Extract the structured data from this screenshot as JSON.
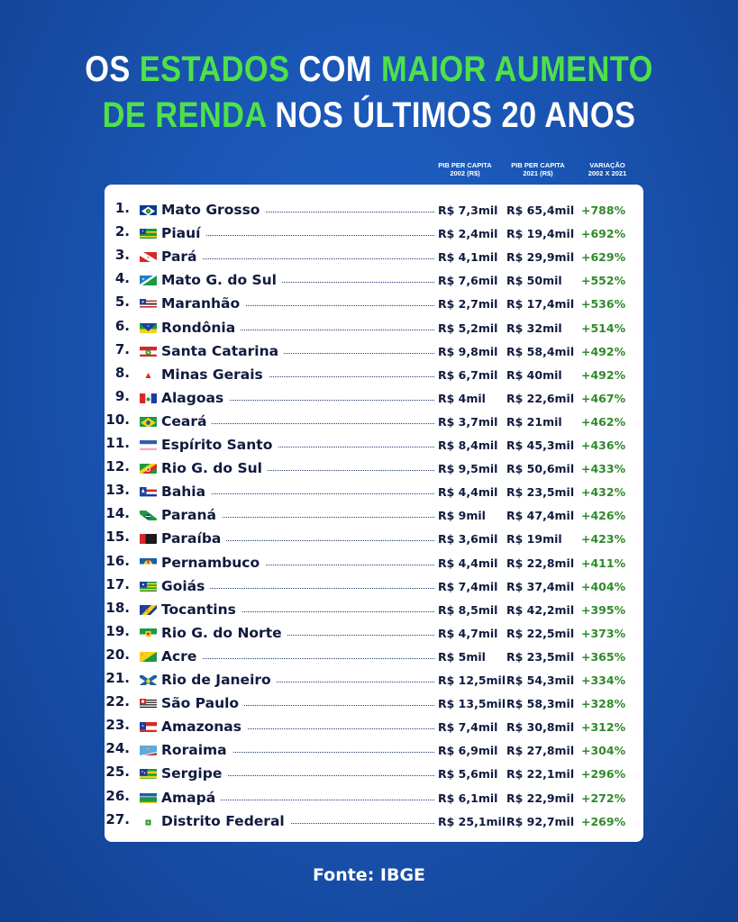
{
  "title": {
    "line1": [
      {
        "text": "OS ",
        "highlight": false
      },
      {
        "text": "ESTADOS",
        "highlight": true
      },
      {
        "text": " COM ",
        "highlight": false
      },
      {
        "text": "MAIOR AUMENTO",
        "highlight": true
      }
    ],
    "line2": [
      {
        "text": "DE RENDA",
        "highlight": true
      },
      {
        "text": " NOS ÚLTIMOS 20 ANOS",
        "highlight": false
      }
    ]
  },
  "colors": {
    "background": "#1a55b4",
    "highlight": "#4fe04a",
    "text_dark": "#101a3e",
    "variation": "#2f8a2a"
  },
  "columns": {
    "pib2002": {
      "line1": "PIB PER CAPITA",
      "line2": "2002 (R$)"
    },
    "pib2021": {
      "line1": "PIB PER CAPITA",
      "line2": "2021 (R$)"
    },
    "variation": {
      "line1": "VARIAÇÃO",
      "line2": "2002 X 2021"
    }
  },
  "rows": [
    {
      "rank": "1.",
      "state": "Mato Grosso",
      "flag": "mato-grosso-flag",
      "pib2002": "R$ 7,3mil",
      "pib2021": "R$ 65,4mil",
      "variation": "+788%"
    },
    {
      "rank": "2.",
      "state": "Piauí",
      "flag": "piaui-flag",
      "pib2002": "R$ 2,4mil",
      "pib2021": "R$ 19,4mil",
      "variation": "+692%"
    },
    {
      "rank": "3.",
      "state": "Pará",
      "flag": "para-flag",
      "pib2002": "R$ 4,1mil",
      "pib2021": "R$ 29,9mil",
      "variation": "+629%"
    },
    {
      "rank": "4.",
      "state": "Mato G. do Sul",
      "flag": "mato-grosso-do-sul-flag",
      "pib2002": "R$ 7,6mil",
      "pib2021": "R$ 50mil",
      "variation": "+552%"
    },
    {
      "rank": "5.",
      "state": "Maranhão",
      "flag": "maranhao-flag",
      "pib2002": "R$ 2,7mil",
      "pib2021": "R$ 17,4mil",
      "variation": "+536%"
    },
    {
      "rank": "6.",
      "state": "Rondônia",
      "flag": "rondonia-flag",
      "pib2002": "R$ 5,2mil",
      "pib2021": "R$ 32mil",
      "variation": "+514%"
    },
    {
      "rank": "7.",
      "state": "Santa Catarina",
      "flag": "santa-catarina-flag",
      "pib2002": "R$ 9,8mil",
      "pib2021": "R$ 58,4mil",
      "variation": "+492%"
    },
    {
      "rank": "8.",
      "state": "Minas Gerais",
      "flag": "minas-gerais-flag",
      "pib2002": "R$ 6,7mil",
      "pib2021": "R$ 40mil",
      "variation": "+492%"
    },
    {
      "rank": "9.",
      "state": "Alagoas",
      "flag": "alagoas-flag",
      "pib2002": "R$ 4mil",
      "pib2021": "R$ 22,6mil",
      "variation": "+467%"
    },
    {
      "rank": "10.",
      "state": "Ceará",
      "flag": "ceara-flag",
      "pib2002": "R$ 3,7mil",
      "pib2021": "R$ 21mil",
      "variation": "+462%"
    },
    {
      "rank": "11.",
      "state": "Espírito Santo",
      "flag": "espirito-santo-flag",
      "pib2002": "R$ 8,4mil",
      "pib2021": "R$ 45,3mil",
      "variation": "+436%"
    },
    {
      "rank": "12.",
      "state": "Rio G. do Sul",
      "flag": "rio-grande-do-sul-flag",
      "pib2002": "R$ 9,5mil",
      "pib2021": "R$ 50,6mil",
      "variation": "+433%"
    },
    {
      "rank": "13.",
      "state": "Bahia",
      "flag": "bahia-flag",
      "pib2002": "R$ 4,4mil",
      "pib2021": "R$ 23,5mil",
      "variation": "+432%"
    },
    {
      "rank": "14.",
      "state": "Paraná",
      "flag": "parana-flag",
      "pib2002": "R$ 9mil",
      "pib2021": "R$ 47,4mil",
      "variation": "+426%"
    },
    {
      "rank": "15.",
      "state": "Paraíba",
      "flag": "paraiba-flag",
      "pib2002": "R$ 3,6mil",
      "pib2021": "R$ 19mil",
      "variation": "+423%"
    },
    {
      "rank": "16.",
      "state": "Pernambuco",
      "flag": "pernambuco-flag",
      "pib2002": "R$ 4,4mil",
      "pib2021": "R$ 22,8mil",
      "variation": "+411%"
    },
    {
      "rank": "17.",
      "state": "Goiás",
      "flag": "goias-flag",
      "pib2002": "R$ 7,4mil",
      "pib2021": "R$ 37,4mil",
      "variation": "+404%"
    },
    {
      "rank": "18.",
      "state": "Tocantins",
      "flag": "tocantins-flag",
      "pib2002": "R$ 8,5mil",
      "pib2021": "R$ 42,2mil",
      "variation": "+395%"
    },
    {
      "rank": "19.",
      "state": "Rio G. do Norte",
      "flag": "rio-grande-do-norte-flag",
      "pib2002": "R$ 4,7mil",
      "pib2021": "R$ 22,5mil",
      "variation": "+373%"
    },
    {
      "rank": "20.",
      "state": "Acre",
      "flag": "acre-flag",
      "pib2002": "R$ 5mil",
      "pib2021": "R$ 23,5mil",
      "variation": "+365%"
    },
    {
      "rank": "21.",
      "state": "Rio de Janeiro",
      "flag": "rio-de-janeiro-flag",
      "pib2002": "R$ 12,5mil",
      "pib2021": "R$ 54,3mil",
      "variation": "+334%"
    },
    {
      "rank": "22.",
      "state": "São Paulo",
      "flag": "sao-paulo-flag",
      "pib2002": "R$ 13,5mil",
      "pib2021": "R$ 58,3mil",
      "variation": "+328%"
    },
    {
      "rank": "23.",
      "state": "Amazonas",
      "flag": "amazonas-flag",
      "pib2002": "R$ 7,4mil",
      "pib2021": "R$ 30,8mil",
      "variation": "+312%"
    },
    {
      "rank": "24.",
      "state": "Roraima",
      "flag": "roraima-flag",
      "pib2002": "R$ 6,9mil",
      "pib2021": "R$ 27,8mil",
      "variation": "+304%"
    },
    {
      "rank": "25.",
      "state": "Sergipe",
      "flag": "sergipe-flag",
      "pib2002": "R$ 5,6mil",
      "pib2021": "R$ 22,1mil",
      "variation": "+296%"
    },
    {
      "rank": "26.",
      "state": "Amapá",
      "flag": "amapa-flag",
      "pib2002": "R$ 6,1mil",
      "pib2021": "R$ 22,9mil",
      "variation": "+272%"
    },
    {
      "rank": "27.",
      "state": "Distrito Federal",
      "flag": "distrito-federal-flag",
      "pib2002": "R$ 25,1mil",
      "pib2021": "R$ 92,7mil",
      "variation": "+269%"
    }
  ],
  "source": "Fonte: IBGE"
}
